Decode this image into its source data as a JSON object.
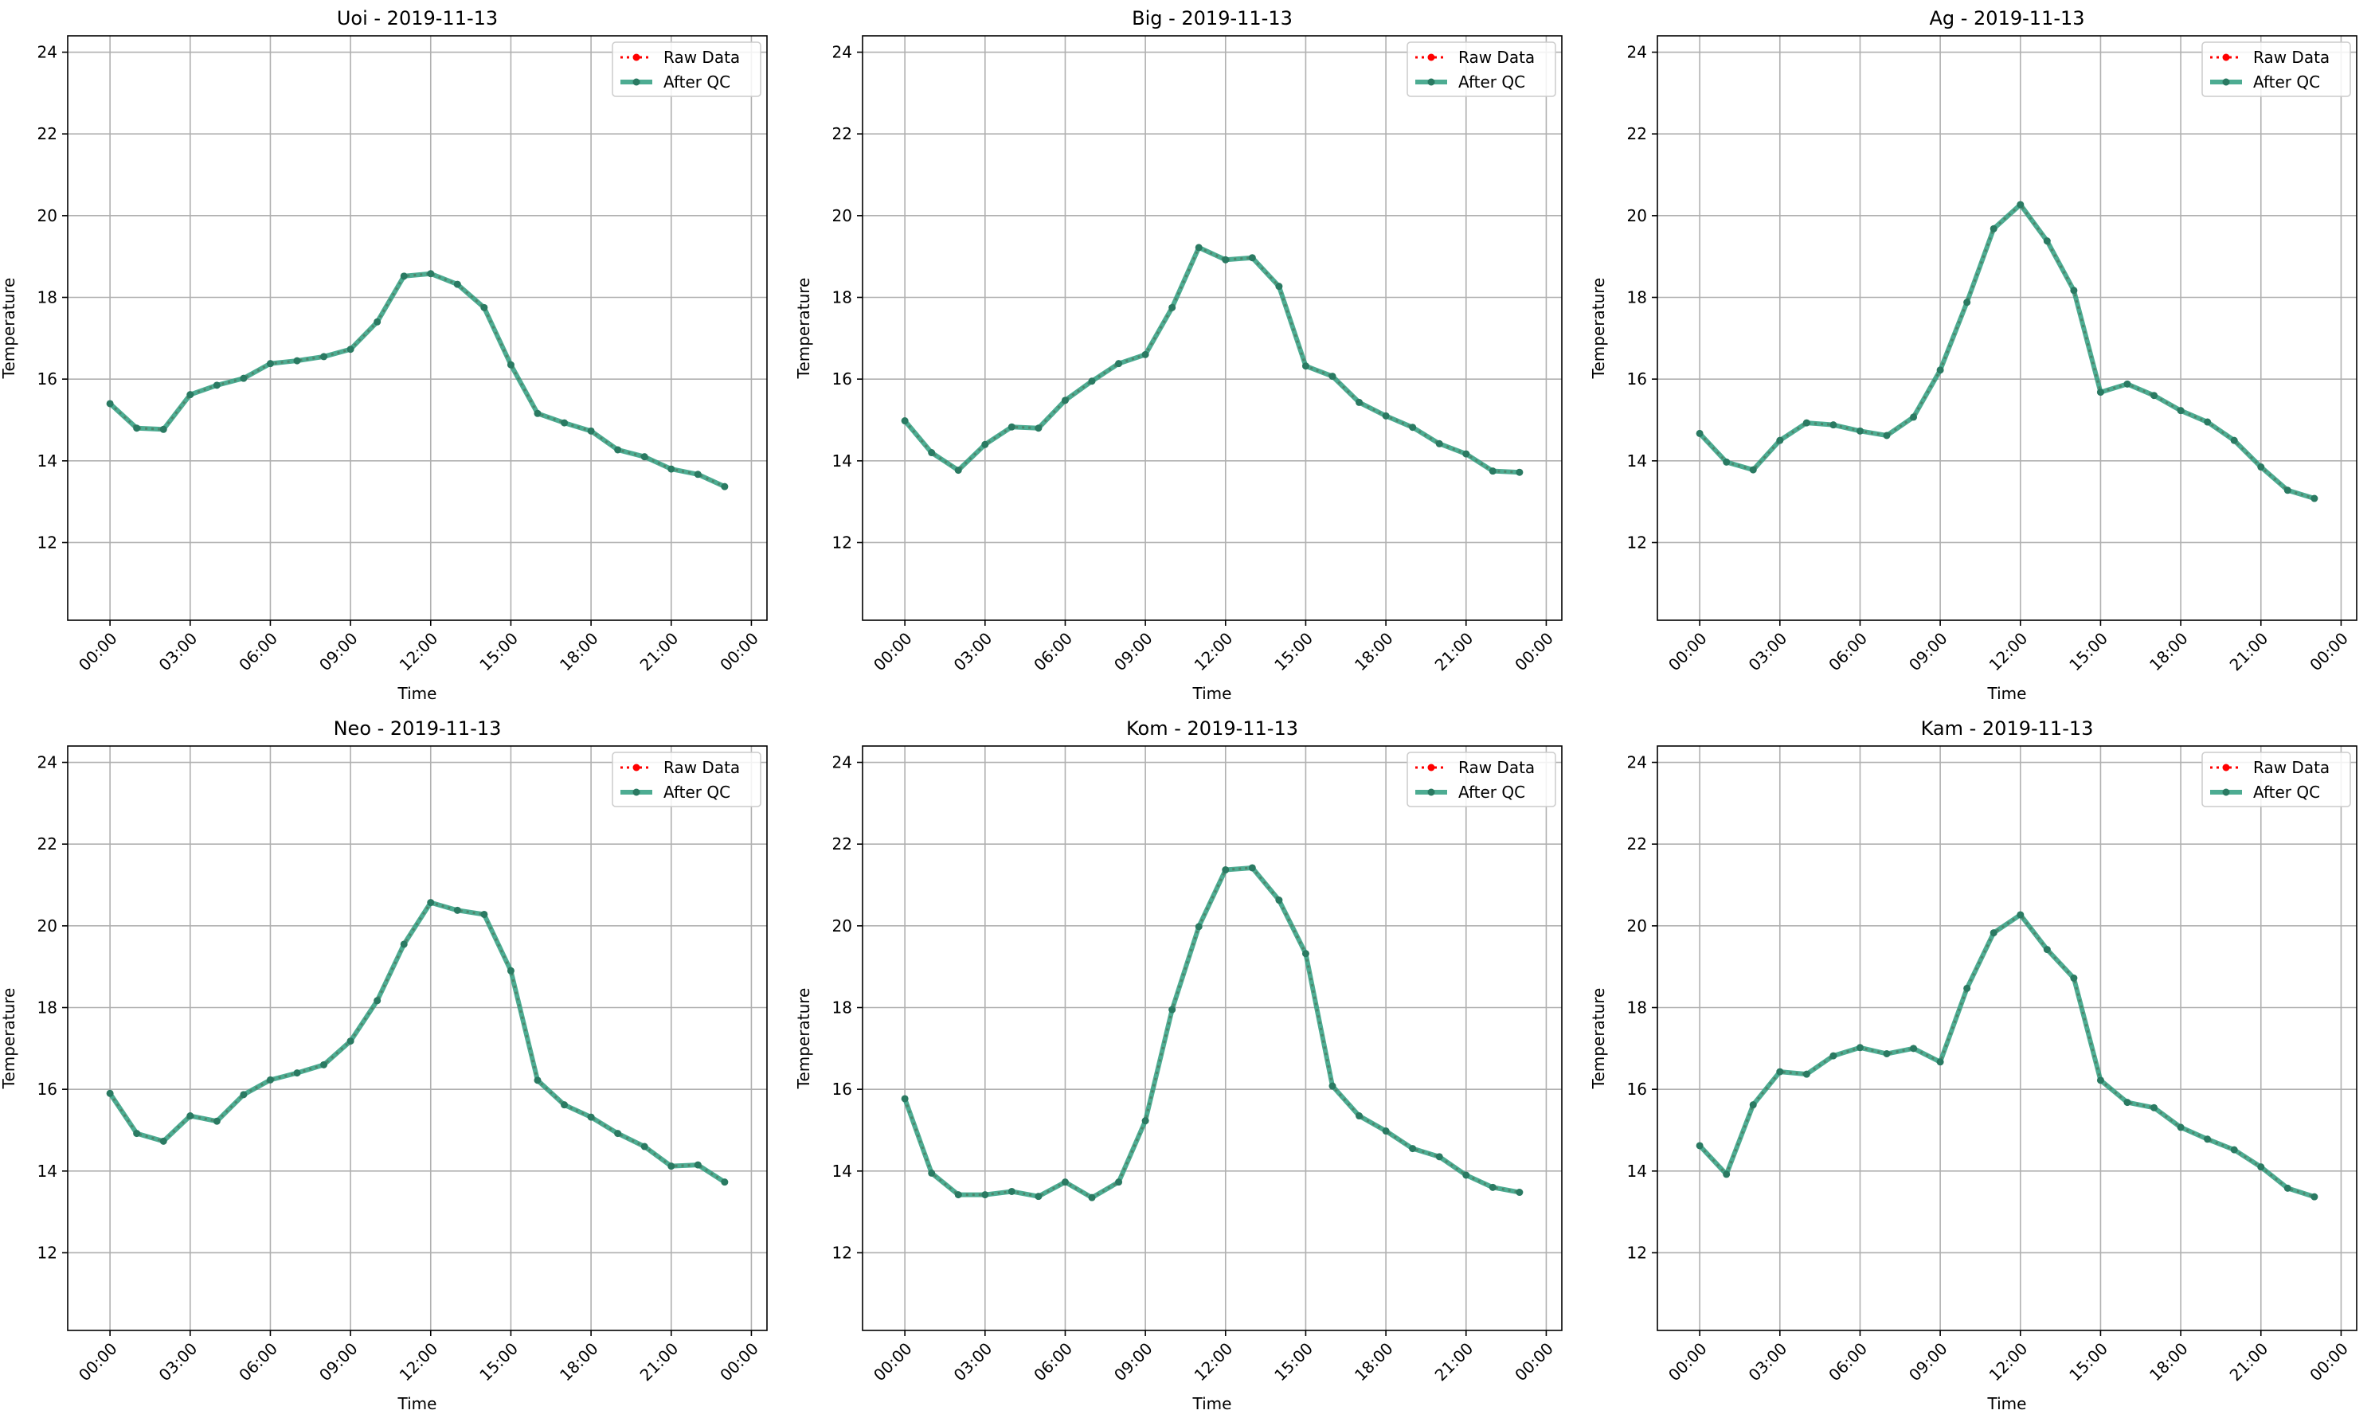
{
  "figure": {
    "legend_labels": [
      "Raw Data",
      "After QC"
    ],
    "series_colors": {
      "raw": "#ff0000",
      "qc": "#2e9e7f"
    },
    "xlabel": "Time",
    "ylabel": "Temperature"
  },
  "chart_data": [
    {
      "type": "line",
      "title": "Uoi - 2019-11-13",
      "xlabel": "Time",
      "ylabel": "Temperature",
      "xlim": [
        "2019-11-12 22:25",
        "2019-11-14 00:35"
      ],
      "ylim": [
        10.1,
        24.4
      ],
      "x_tick_labels": [
        "00:00",
        "03:00",
        "06:00",
        "09:00",
        "12:00",
        "15:00",
        "18:00",
        "21:00",
        "00:00"
      ],
      "y_ticks": [
        12,
        14,
        16,
        18,
        20,
        22,
        24
      ],
      "grid": true,
      "legend_position": "top-right",
      "x": [
        "00:00",
        "01:00",
        "02:00",
        "03:00",
        "04:00",
        "05:00",
        "06:00",
        "07:00",
        "08:00",
        "09:00",
        "10:00",
        "11:00",
        "12:00",
        "13:00",
        "14:00",
        "15:00",
        "16:00",
        "17:00",
        "18:00",
        "19:00",
        "20:00",
        "21:00",
        "22:00",
        "23:00"
      ],
      "series": [
        {
          "name": "Raw Data",
          "values": [
            15.4,
            14.8,
            14.77,
            15.62,
            15.85,
            16.02,
            16.38,
            16.45,
            16.55,
            16.73,
            17.4,
            18.52,
            18.58,
            18.32,
            17.75,
            16.35,
            15.16,
            14.93,
            14.73,
            14.27,
            14.1,
            13.8,
            13.67,
            13.37
          ]
        },
        {
          "name": "After QC",
          "values": [
            15.4,
            14.8,
            14.77,
            15.62,
            15.85,
            16.02,
            16.38,
            16.45,
            16.55,
            16.73,
            17.4,
            18.52,
            18.58,
            18.32,
            17.75,
            16.35,
            15.16,
            14.93,
            14.73,
            14.27,
            14.1,
            13.8,
            13.67,
            13.37
          ]
        }
      ]
    },
    {
      "type": "line",
      "title": "Big - 2019-11-13",
      "xlabel": "Time",
      "ylabel": "Temperature",
      "xlim": [
        "2019-11-12 22:25",
        "2019-11-14 00:35"
      ],
      "ylim": [
        10.1,
        24.4
      ],
      "x_tick_labels": [
        "00:00",
        "03:00",
        "06:00",
        "09:00",
        "12:00",
        "15:00",
        "18:00",
        "21:00",
        "00:00"
      ],
      "y_ticks": [
        12,
        14,
        16,
        18,
        20,
        22,
        24
      ],
      "grid": true,
      "legend_position": "top-right",
      "x": [
        "00:00",
        "01:00",
        "02:00",
        "03:00",
        "04:00",
        "05:00",
        "06:00",
        "07:00",
        "08:00",
        "09:00",
        "10:00",
        "11:00",
        "12:00",
        "13:00",
        "14:00",
        "15:00",
        "16:00",
        "17:00",
        "18:00",
        "19:00",
        "20:00",
        "21:00",
        "22:00",
        "23:00"
      ],
      "series": [
        {
          "name": "Raw Data",
          "values": [
            14.98,
            14.2,
            13.77,
            14.4,
            14.83,
            14.8,
            15.48,
            15.95,
            16.38,
            16.6,
            17.75,
            19.22,
            18.92,
            18.97,
            18.27,
            16.32,
            16.07,
            15.43,
            15.1,
            14.82,
            14.42,
            14.17,
            13.75,
            13.72
          ]
        },
        {
          "name": "After QC",
          "values": [
            14.98,
            14.2,
            13.77,
            14.4,
            14.83,
            14.8,
            15.48,
            15.95,
            16.38,
            16.6,
            17.75,
            19.22,
            18.92,
            18.97,
            18.27,
            16.32,
            16.07,
            15.43,
            15.1,
            14.82,
            14.42,
            14.17,
            13.75,
            13.72
          ]
        }
      ]
    },
    {
      "type": "line",
      "title": "Ag - 2019-11-13",
      "xlabel": "Time",
      "ylabel": "Temperature",
      "xlim": [
        "2019-11-12 22:25",
        "2019-11-14 00:35"
      ],
      "ylim": [
        10.1,
        24.4
      ],
      "x_tick_labels": [
        "00:00",
        "03:00",
        "06:00",
        "09:00",
        "12:00",
        "15:00",
        "18:00",
        "21:00",
        "00:00"
      ],
      "y_ticks": [
        12,
        14,
        16,
        18,
        20,
        22,
        24
      ],
      "grid": true,
      "legend_position": "top-right",
      "x": [
        "00:00",
        "01:00",
        "02:00",
        "03:00",
        "04:00",
        "05:00",
        "06:00",
        "07:00",
        "08:00",
        "09:00",
        "10:00",
        "11:00",
        "12:00",
        "13:00",
        "14:00",
        "15:00",
        "16:00",
        "17:00",
        "18:00",
        "19:00",
        "20:00",
        "21:00",
        "22:00",
        "23:00"
      ],
      "series": [
        {
          "name": "Raw Data",
          "values": [
            14.67,
            13.97,
            13.78,
            14.5,
            14.93,
            14.88,
            14.73,
            14.62,
            15.07,
            16.22,
            17.88,
            19.68,
            20.27,
            19.38,
            18.17,
            15.68,
            15.88,
            15.6,
            15.23,
            14.95,
            14.5,
            13.85,
            13.28,
            13.08
          ]
        },
        {
          "name": "After QC",
          "values": [
            14.67,
            13.97,
            13.78,
            14.5,
            14.93,
            14.88,
            14.73,
            14.62,
            15.07,
            16.22,
            17.88,
            19.68,
            20.27,
            19.38,
            18.17,
            15.68,
            15.88,
            15.6,
            15.23,
            14.95,
            14.5,
            13.85,
            13.28,
            13.08
          ]
        }
      ]
    },
    {
      "type": "line",
      "title": "Neo - 2019-11-13",
      "xlabel": "Time",
      "ylabel": "Temperature",
      "xlim": [
        "2019-11-12 22:25",
        "2019-11-14 00:35"
      ],
      "ylim": [
        10.1,
        24.4
      ],
      "x_tick_labels": [
        "00:00",
        "03:00",
        "06:00",
        "09:00",
        "12:00",
        "15:00",
        "18:00",
        "21:00",
        "00:00"
      ],
      "y_ticks": [
        12,
        14,
        16,
        18,
        20,
        22,
        24
      ],
      "grid": true,
      "legend_position": "top-right",
      "x": [
        "00:00",
        "01:00",
        "02:00",
        "03:00",
        "04:00",
        "05:00",
        "06:00",
        "07:00",
        "08:00",
        "09:00",
        "10:00",
        "11:00",
        "12:00",
        "13:00",
        "14:00",
        "15:00",
        "16:00",
        "17:00",
        "18:00",
        "19:00",
        "20:00",
        "21:00",
        "22:00",
        "23:00"
      ],
      "series": [
        {
          "name": "Raw Data",
          "values": [
            15.9,
            14.92,
            14.73,
            15.35,
            15.22,
            15.87,
            16.23,
            16.4,
            16.6,
            17.18,
            18.17,
            19.55,
            20.57,
            20.38,
            20.28,
            18.9,
            16.22,
            15.62,
            15.32,
            14.92,
            14.6,
            14.12,
            14.15,
            13.73
          ]
        },
        {
          "name": "After QC",
          "values": [
            15.9,
            14.92,
            14.73,
            15.35,
            15.22,
            15.87,
            16.23,
            16.4,
            16.6,
            17.18,
            18.17,
            19.55,
            20.57,
            20.38,
            20.28,
            18.9,
            16.22,
            15.62,
            15.32,
            14.92,
            14.6,
            14.12,
            14.15,
            13.73
          ]
        }
      ]
    },
    {
      "type": "line",
      "title": "Kom - 2019-11-13",
      "xlabel": "Time",
      "ylabel": "Temperature",
      "xlim": [
        "2019-11-12 22:25",
        "2019-11-14 00:35"
      ],
      "ylim": [
        10.1,
        24.4
      ],
      "x_tick_labels": [
        "00:00",
        "03:00",
        "06:00",
        "09:00",
        "12:00",
        "15:00",
        "18:00",
        "21:00",
        "00:00"
      ],
      "y_ticks": [
        12,
        14,
        16,
        18,
        20,
        22,
        24
      ],
      "grid": true,
      "legend_position": "top-right",
      "x": [
        "00:00",
        "01:00",
        "02:00",
        "03:00",
        "04:00",
        "05:00",
        "06:00",
        "07:00",
        "08:00",
        "09:00",
        "10:00",
        "11:00",
        "12:00",
        "13:00",
        "14:00",
        "15:00",
        "16:00",
        "17:00",
        "18:00",
        "19:00",
        "20:00",
        "21:00",
        "22:00",
        "23:00"
      ],
      "series": [
        {
          "name": "Raw Data",
          "values": [
            15.77,
            13.95,
            13.42,
            13.42,
            13.5,
            13.38,
            13.73,
            13.35,
            13.73,
            15.23,
            17.95,
            19.98,
            21.37,
            21.42,
            20.63,
            19.32,
            16.08,
            15.35,
            14.98,
            14.55,
            14.35,
            13.9,
            13.6,
            13.48
          ]
        },
        {
          "name": "After QC",
          "values": [
            15.77,
            13.95,
            13.42,
            13.42,
            13.5,
            13.38,
            13.73,
            13.35,
            13.73,
            15.23,
            17.95,
            19.98,
            21.37,
            21.42,
            20.63,
            19.32,
            16.08,
            15.35,
            14.98,
            14.55,
            14.35,
            13.9,
            13.6,
            13.48
          ]
        }
      ]
    },
    {
      "type": "line",
      "title": "Kam - 2019-11-13",
      "xlabel": "Time",
      "ylabel": "Temperature",
      "xlim": [
        "2019-11-12 22:25",
        "2019-11-14 00:35"
      ],
      "ylim": [
        10.1,
        24.4
      ],
      "x_tick_labels": [
        "00:00",
        "03:00",
        "06:00",
        "09:00",
        "12:00",
        "15:00",
        "18:00",
        "21:00",
        "00:00"
      ],
      "y_ticks": [
        12,
        14,
        16,
        18,
        20,
        22,
        24
      ],
      "grid": true,
      "legend_position": "top-right",
      "x": [
        "00:00",
        "01:00",
        "02:00",
        "03:00",
        "04:00",
        "05:00",
        "06:00",
        "07:00",
        "08:00",
        "09:00",
        "10:00",
        "11:00",
        "12:00",
        "13:00",
        "14:00",
        "15:00",
        "16:00",
        "17:00",
        "18:00",
        "19:00",
        "20:00",
        "21:00",
        "22:00",
        "23:00"
      ],
      "series": [
        {
          "name": "Raw Data",
          "values": [
            14.62,
            13.92,
            15.62,
            16.43,
            16.37,
            16.82,
            17.02,
            16.87,
            17.0,
            16.67,
            18.47,
            19.83,
            20.27,
            19.42,
            18.72,
            16.22,
            15.68,
            15.55,
            15.07,
            14.78,
            14.52,
            14.1,
            13.58,
            13.37
          ]
        },
        {
          "name": "After QC",
          "values": [
            14.62,
            13.92,
            15.62,
            16.43,
            16.37,
            16.82,
            17.02,
            16.87,
            17.0,
            16.67,
            18.47,
            19.83,
            20.27,
            19.42,
            18.72,
            16.22,
            15.68,
            15.55,
            15.07,
            14.78,
            14.52,
            14.1,
            13.58,
            13.37
          ]
        }
      ]
    }
  ]
}
